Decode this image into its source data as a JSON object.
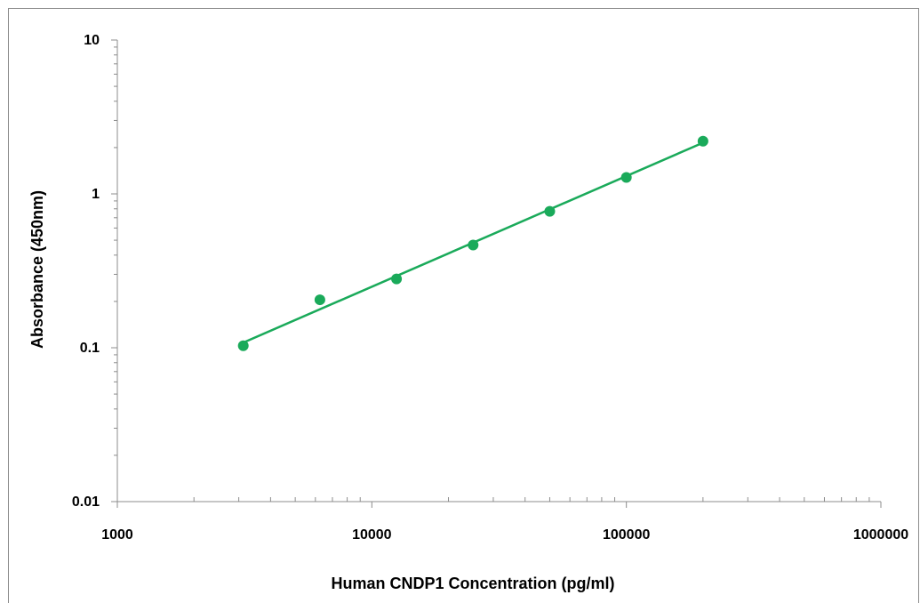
{
  "chart_data": {
    "type": "scatter",
    "title": "",
    "xlabel": "Human CNDP1 Concentration (pg/ml)",
    "ylabel": "Absorbance (450nm)",
    "x_scale": "log",
    "y_scale": "log",
    "xlim": [
      1000,
      1000000
    ],
    "ylim": [
      0.01,
      10
    ],
    "x_ticks": [
      1000,
      10000,
      100000,
      1000000
    ],
    "x_tick_labels": [
      "1000",
      "10000",
      "100000",
      "1000000"
    ],
    "y_ticks": [
      0.01,
      0.1,
      1,
      10
    ],
    "y_tick_labels": [
      "0.01",
      "0.1",
      "1",
      "10"
    ],
    "grid": false,
    "legend": "none",
    "series": [
      {
        "x": [
          3125,
          6250,
          12500,
          25000,
          50000,
          100000,
          200000
        ],
        "y": [
          0.103,
          0.205,
          0.28,
          0.465,
          0.77,
          1.28,
          2.2
        ],
        "color": "#1aaa5a"
      }
    ],
    "trendline": {
      "type": "power",
      "color": "#1aaa5a",
      "x": [
        3125,
        200000
      ],
      "y": [
        0.108,
        2.15
      ]
    }
  }
}
